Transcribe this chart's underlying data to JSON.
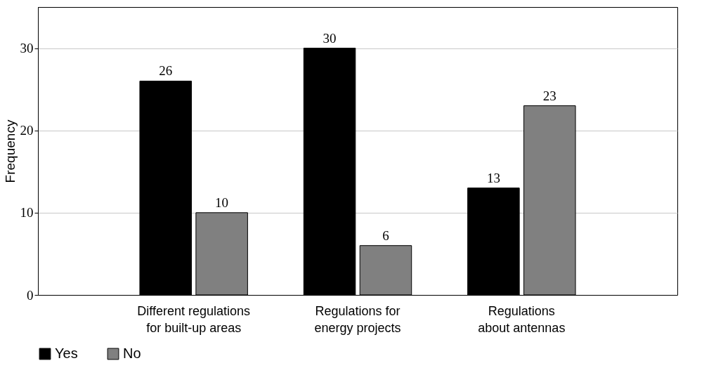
{
  "chart_data": {
    "type": "bar",
    "ylabel": "Frequency",
    "categories": [
      "Different regulations\nfor built-up areas",
      "Regulations for\nenergy projects",
      "Regulations\nabout antennas"
    ],
    "series": [
      {
        "name": "Yes",
        "color": "#000000",
        "values": [
          26,
          30,
          13
        ]
      },
      {
        "name": "No",
        "color": "#808080",
        "values": [
          10,
          6,
          23
        ]
      }
    ],
    "ylim": [
      0,
      35
    ],
    "yticks": [
      0,
      10,
      20,
      30
    ],
    "grid": "y",
    "legend": "bottom",
    "data_labels": true
  }
}
